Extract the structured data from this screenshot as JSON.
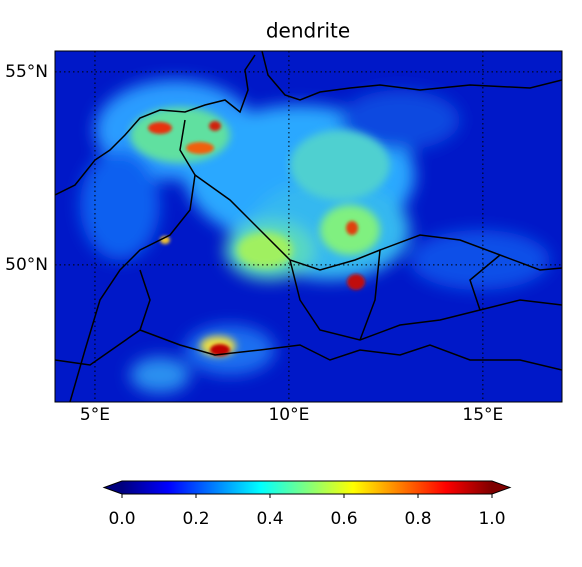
{
  "chart_data": {
    "type": "map",
    "title": "dendrite",
    "xlim": [
      3.97,
      17.04
    ],
    "ylim": [
      46.45,
      55.54
    ],
    "xticks": [
      {
        "value": 5,
        "label": "5°E"
      },
      {
        "value": 10,
        "label": "10°E"
      },
      {
        "value": 15,
        "label": "15°E"
      }
    ],
    "yticks": [
      {
        "value": 50,
        "label": "50°N"
      },
      {
        "value": 55,
        "label": "55°N"
      }
    ],
    "grid": true,
    "colorbar": {
      "colormap": "jet",
      "lim": [
        0,
        1
      ],
      "ticks": [
        {
          "value": 0,
          "label": "0.0"
        },
        0.2,
        0.4,
        0.6,
        0.8,
        {
          "value": 1,
          "label": "1.0"
        }
      ]
    }
  }
}
